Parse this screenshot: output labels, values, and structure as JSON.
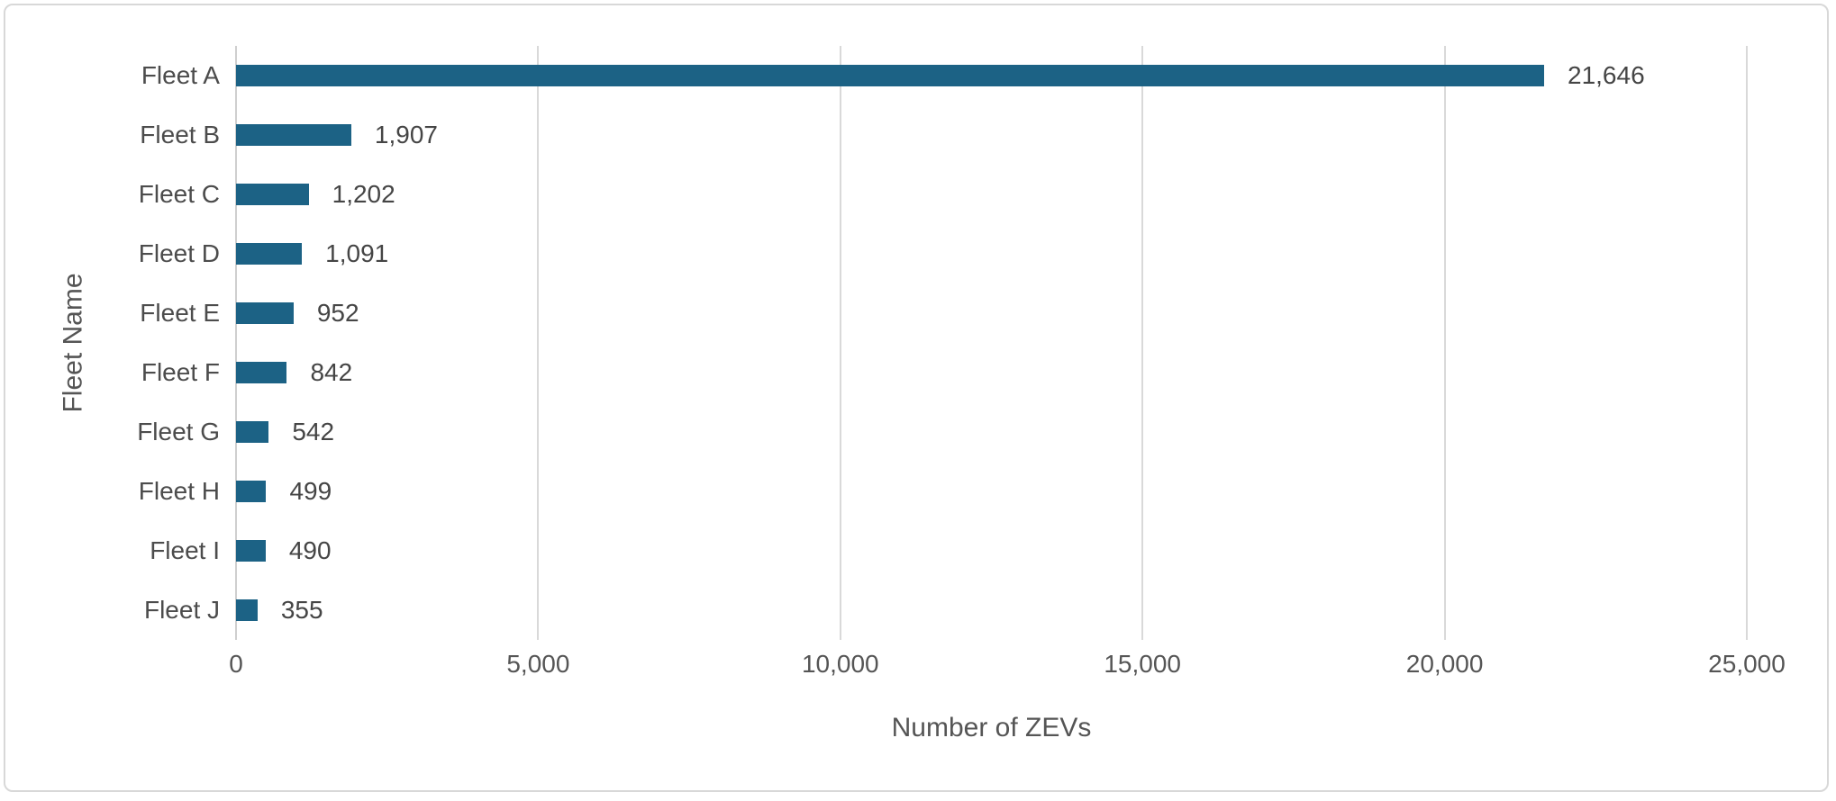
{
  "chart_data": {
    "type": "bar",
    "orientation": "horizontal",
    "title": "",
    "xlabel": "Number of ZEVs",
    "ylabel": "Fleet Name",
    "categories": [
      "Fleet A",
      "Fleet B",
      "Fleet C",
      "Fleet D",
      "Fleet E",
      "Fleet F",
      "Fleet G",
      "Fleet H",
      "Fleet I",
      "Fleet J"
    ],
    "values": [
      21646,
      1907,
      1202,
      1091,
      952,
      842,
      542,
      499,
      490,
      355
    ],
    "value_labels": [
      "21,646",
      "1,907",
      "1,202",
      "1,091",
      "952",
      "842",
      "542",
      "499",
      "490",
      "355"
    ],
    "xlim": [
      0,
      25000
    ],
    "x_ticks": [
      0,
      5000,
      10000,
      15000,
      20000,
      25000
    ],
    "x_tick_labels": [
      "0",
      "5,000",
      "10,000",
      "15,000",
      "20,000",
      "25,000"
    ],
    "grid": "vertical-gridlines-on",
    "legend": "none",
    "colors": {
      "bar": "#1c6285",
      "gridline": "#d9d9d9",
      "axis_line": "#cfcfcf",
      "frame_border": "#d8d8d8",
      "label_text": "#4c4c4c",
      "tick_text": "#555555"
    }
  }
}
